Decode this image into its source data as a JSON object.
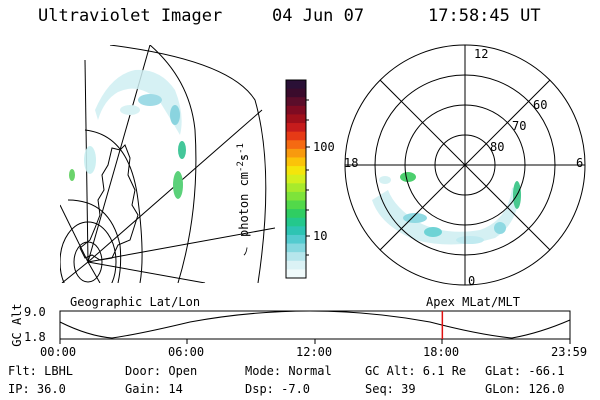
{
  "header": {
    "instrument": "Ultraviolet Imager",
    "date": "04 Jun 07",
    "time": "17:58:45 UT"
  },
  "colorbar": {
    "label": "photon cm",
    "label_exp": "-2",
    "label_unit": "s",
    "label_unit_exp": "-1",
    "tick_100": "100",
    "tick_10": "10",
    "colors": [
      "#2a1036",
      "#3a0b2c",
      "#5b0d2a",
      "#7f0b22",
      "#a0101b",
      "#c61c1c",
      "#e63a16",
      "#f56a12",
      "#f89a0e",
      "#fbc309",
      "#f4e50b",
      "#d3ef1e",
      "#a8ea2c",
      "#7ee33a",
      "#52d94a",
      "#2fcd62",
      "#24c88c",
      "#2ec4b3",
      "#54cbcf",
      "#86d8df",
      "#b6e6ec",
      "#dbf2f5",
      "#f0fafb"
    ]
  },
  "left_panel": {
    "label": "Geographic Lat/Lon"
  },
  "right_panel": {
    "label": "Apex  MLat/MLT",
    "mlt_12": "12",
    "mlt_18": "18",
    "mlt_6": "6",
    "mlt_0": "0",
    "lat_60": "60",
    "lat_70": "70",
    "lat_80": "80"
  },
  "altitude_plot": {
    "ylabel": "GC Alt",
    "y_max": "9.0",
    "y_min": "1.8",
    "x_ticks": [
      "00:00",
      "06:00",
      "12:00",
      "18:00",
      "23:59"
    ],
    "marker_time_hours": 17.98,
    "marker_color": "#e01010"
  },
  "footer": {
    "filter": "Flt: LBHL",
    "ip": "IP: 36.0",
    "door": "Door: Open",
    "gain": "Gain: 14",
    "mode": "Mode: Normal",
    "dsp": "Dsp:   -7.0",
    "gc_alt": "GC Alt: 6.1 Re",
    "seq": "Seq: 39",
    "glat": "GLat: -66.1",
    "glon": "GLon: 126.0"
  }
}
